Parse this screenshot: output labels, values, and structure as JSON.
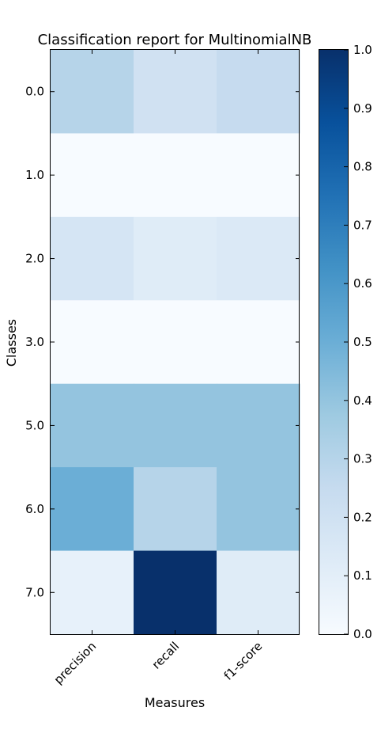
{
  "chart_data": {
    "type": "heatmap",
    "title": "Classification report for MultinomialNB",
    "xlabel": "Measures",
    "ylabel": "Classes",
    "x_categories": [
      "precision",
      "recall",
      "f1-score"
    ],
    "y_categories": [
      "0.0",
      "1.0",
      "2.0",
      "3.0",
      "5.0",
      "6.0",
      "7.0"
    ],
    "values": [
      [
        0.3,
        0.2,
        0.25
      ],
      [
        0.0,
        0.0,
        0.0
      ],
      [
        0.17,
        0.12,
        0.14
      ],
      [
        0.0,
        0.0,
        0.0
      ],
      [
        0.4,
        0.4,
        0.4
      ],
      [
        0.5,
        0.3,
        0.4
      ],
      [
        0.08,
        1.0,
        0.12
      ]
    ],
    "colormap": "Blues",
    "vmin": 0.0,
    "vmax": 1.0,
    "colorbar_ticks": [
      "0.0",
      "0.1",
      "0.2",
      "0.3",
      "0.4",
      "0.5",
      "0.6",
      "0.7",
      "0.8",
      "0.9",
      "1.0"
    ],
    "colors": [
      "#f7fbff",
      "#deebf7",
      "#c6dbef",
      "#9ecae1",
      "#6baed6",
      "#4292c6",
      "#2171b5",
      "#08519c",
      "#08306b"
    ]
  }
}
